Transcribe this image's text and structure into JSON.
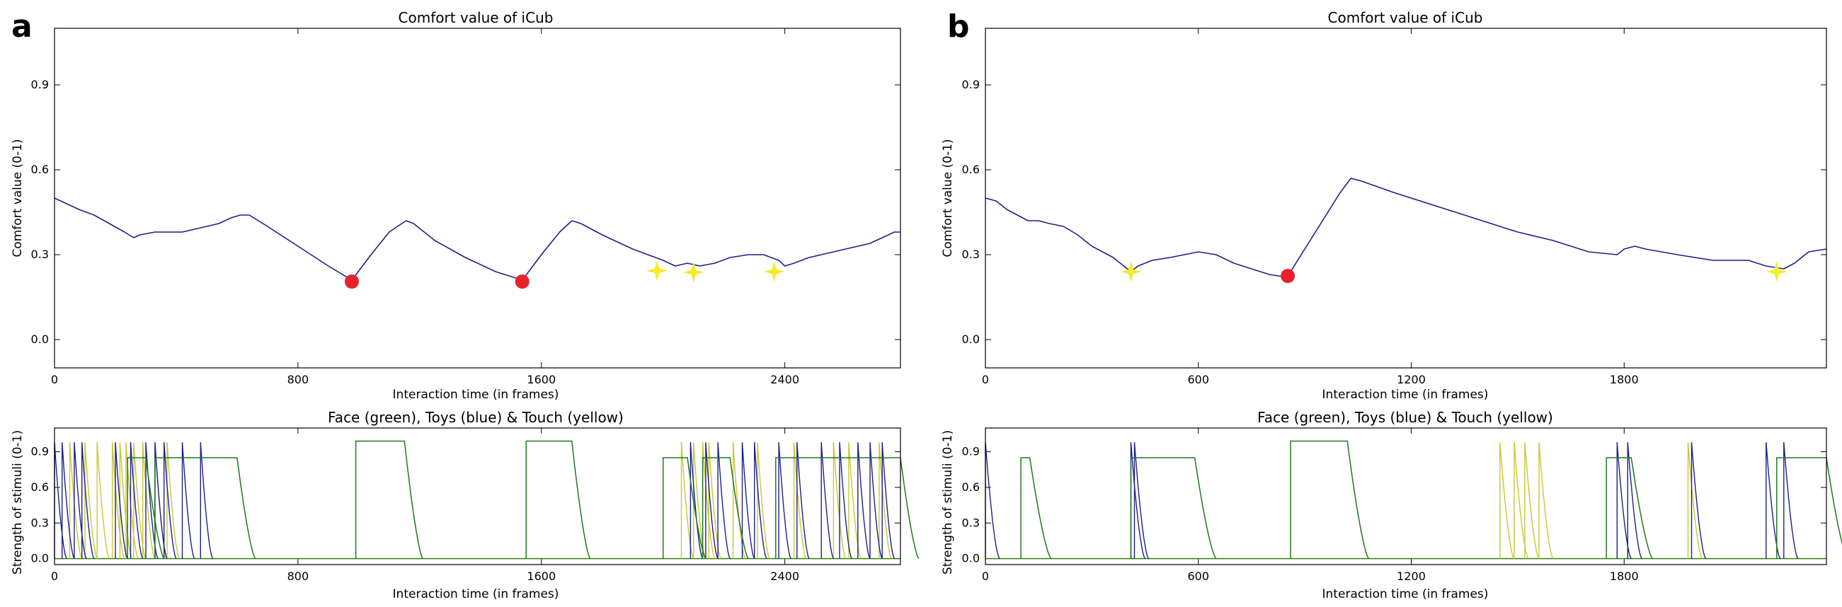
{
  "panels": [
    {
      "letter": "a",
      "comfort": {
        "title": "Comfort value of iCub",
        "xlabel": "Interaction time (in frames)",
        "ylabel": "Comfort value (0-1)",
        "xlim": [
          0,
          2780
        ],
        "ylim": [
          -0.1,
          1.1
        ],
        "xticks": [
          0,
          800,
          1600,
          2400
        ],
        "yticks": [
          0.0,
          0.3,
          0.6,
          0.9
        ],
        "line_color": "#1f1f8c",
        "series": {
          "x": [
            0,
            40,
            80,
            130,
            180,
            230,
            260,
            280,
            330,
            380,
            420,
            460,
            500,
            540,
            580,
            610,
            640,
            700,
            800,
            900,
            977,
            1040,
            1100,
            1155,
            1180,
            1250,
            1350,
            1450,
            1537,
            1600,
            1660,
            1700,
            1730,
            1800,
            1900,
            2000,
            2040,
            2080,
            2120,
            2170,
            2220,
            2280,
            2330,
            2380,
            2400,
            2430,
            2480,
            2520,
            2560,
            2600,
            2640,
            2680,
            2720,
            2760,
            2780
          ],
          "y": [
            0.5,
            0.48,
            0.46,
            0.44,
            0.41,
            0.38,
            0.36,
            0.37,
            0.38,
            0.38,
            0.38,
            0.39,
            0.4,
            0.41,
            0.43,
            0.44,
            0.44,
            0.4,
            0.33,
            0.26,
            0.21,
            0.3,
            0.38,
            0.42,
            0.41,
            0.35,
            0.29,
            0.24,
            0.21,
            0.3,
            0.38,
            0.42,
            0.41,
            0.37,
            0.32,
            0.28,
            0.26,
            0.27,
            0.26,
            0.27,
            0.29,
            0.3,
            0.3,
            0.28,
            0.26,
            0.27,
            0.29,
            0.3,
            0.31,
            0.32,
            0.33,
            0.34,
            0.36,
            0.38,
            0.38
          ]
        },
        "markers": [
          {
            "kind": "circle",
            "color": "#e8222a",
            "x": 977,
            "y": 0.205
          },
          {
            "kind": "circle",
            "color": "#e8222a",
            "x": 1537,
            "y": 0.205
          },
          {
            "kind": "star",
            "color": "#f5ec2a",
            "x": 1980,
            "y": 0.243
          },
          {
            "kind": "star",
            "color": "#f5ec2a",
            "x": 2100,
            "y": 0.238
          },
          {
            "kind": "star",
            "color": "#f5ec2a",
            "x": 2365,
            "y": 0.24
          }
        ]
      },
      "stimuli": {
        "title": "Face (green), Toys (blue) & Touch (yellow)",
        "xlabel": "Interaction time (in frames)",
        "ylabel": "Strength of stimuli (0-1)",
        "xlim": [
          0,
          2780
        ],
        "ylim": [
          -0.05,
          1.1
        ],
        "xticks": [
          0,
          800,
          1600,
          2400
        ],
        "yticks": [
          0.0,
          0.3,
          0.6,
          0.9
        ],
        "colors": {
          "face": "#1e7a1e",
          "toys": "#1f1f8c",
          "touch": "#c8c832"
        },
        "face_plateaus": [
          [
            240,
            300,
            0.85
          ],
          [
            330,
            600,
            0.85
          ],
          [
            990,
            1150,
            0.99
          ],
          [
            1550,
            1700,
            0.99
          ],
          [
            2000,
            2080,
            0.85
          ],
          [
            2130,
            2220,
            0.85
          ],
          [
            2370,
            2780,
            0.85
          ]
        ],
        "toys_spikes": [
          0,
          25,
          65,
          90,
          200,
          250,
          300,
          330,
          360,
          420,
          480,
          2090,
          2140,
          2180,
          2260,
          2300,
          2380,
          2440,
          2520,
          2580,
          2640,
          2680,
          2720
        ],
        "touch_spikes": [
          50,
          100,
          140,
          190,
          215,
          235,
          260,
          290,
          330,
          370,
          2060,
          2100,
          2130,
          2150,
          2230,
          2310,
          2430,
          2560,
          2610,
          2710
        ]
      }
    },
    {
      "letter": "b",
      "comfort": {
        "title": "Comfort value of iCub",
        "xlabel": "Interaction time (in frames)",
        "ylabel": "Comfort value (0-1)",
        "xlim": [
          0,
          2370
        ],
        "ylim": [
          -0.1,
          1.1
        ],
        "xticks": [
          0,
          600,
          1200,
          1800
        ],
        "yticks": [
          0.0,
          0.3,
          0.6,
          0.9
        ],
        "line_color": "#1f1f8c",
        "series": {
          "x": [
            0,
            30,
            60,
            90,
            120,
            150,
            180,
            220,
            260,
            300,
            360,
            410,
            430,
            470,
            520,
            560,
            600,
            650,
            700,
            750,
            800,
            850,
            900,
            950,
            1000,
            1030,
            1060,
            1150,
            1300,
            1450,
            1500,
            1600,
            1700,
            1780,
            1800,
            1830,
            1860,
            1950,
            2000,
            2050,
            2100,
            2150,
            2200,
            2250,
            2280,
            2320,
            2370
          ],
          "y": [
            0.5,
            0.49,
            0.46,
            0.44,
            0.42,
            0.42,
            0.41,
            0.4,
            0.37,
            0.33,
            0.29,
            0.24,
            0.26,
            0.28,
            0.29,
            0.3,
            0.31,
            0.3,
            0.27,
            0.25,
            0.23,
            0.22,
            0.32,
            0.42,
            0.52,
            0.57,
            0.56,
            0.52,
            0.46,
            0.4,
            0.38,
            0.35,
            0.31,
            0.3,
            0.32,
            0.33,
            0.32,
            0.3,
            0.29,
            0.28,
            0.28,
            0.28,
            0.26,
            0.25,
            0.27,
            0.31,
            0.32
          ]
        },
        "markers": [
          {
            "kind": "star",
            "color": "#f5ec2a",
            "x": 410,
            "y": 0.24
          },
          {
            "kind": "circle",
            "color": "#e8222a",
            "x": 852,
            "y": 0.225
          },
          {
            "kind": "star",
            "color": "#f5ec2a",
            "x": 2230,
            "y": 0.24
          }
        ]
      },
      "stimuli": {
        "title": "Face (green), Toys (blue) & Touch (yellow)",
        "xlabel": "Interaction time (in frames)",
        "ylabel": "Strength of stimuli (0-1)",
        "xlim": [
          0,
          2370
        ],
        "ylim": [
          -0.05,
          1.1
        ],
        "xticks": [
          0,
          600,
          1200,
          1800
        ],
        "yticks": [
          0.0,
          0.3,
          0.6,
          0.9
        ],
        "colors": {
          "face": "#1e7a1e",
          "toys": "#1f1f8c",
          "touch": "#c8c832"
        },
        "face_plateaus": [
          [
            100,
            125,
            0.85
          ],
          [
            410,
            590,
            0.85
          ],
          [
            860,
            1020,
            0.99
          ],
          [
            1750,
            1820,
            0.85
          ],
          [
            2230,
            2370,
            0.85
          ]
        ],
        "toys_spikes": [
          0,
          410,
          420,
          1780,
          1810,
          1990,
          2200,
          2250
        ],
        "touch_spikes": [
          1450,
          1490,
          1520,
          1560,
          1980
        ]
      }
    }
  ]
}
